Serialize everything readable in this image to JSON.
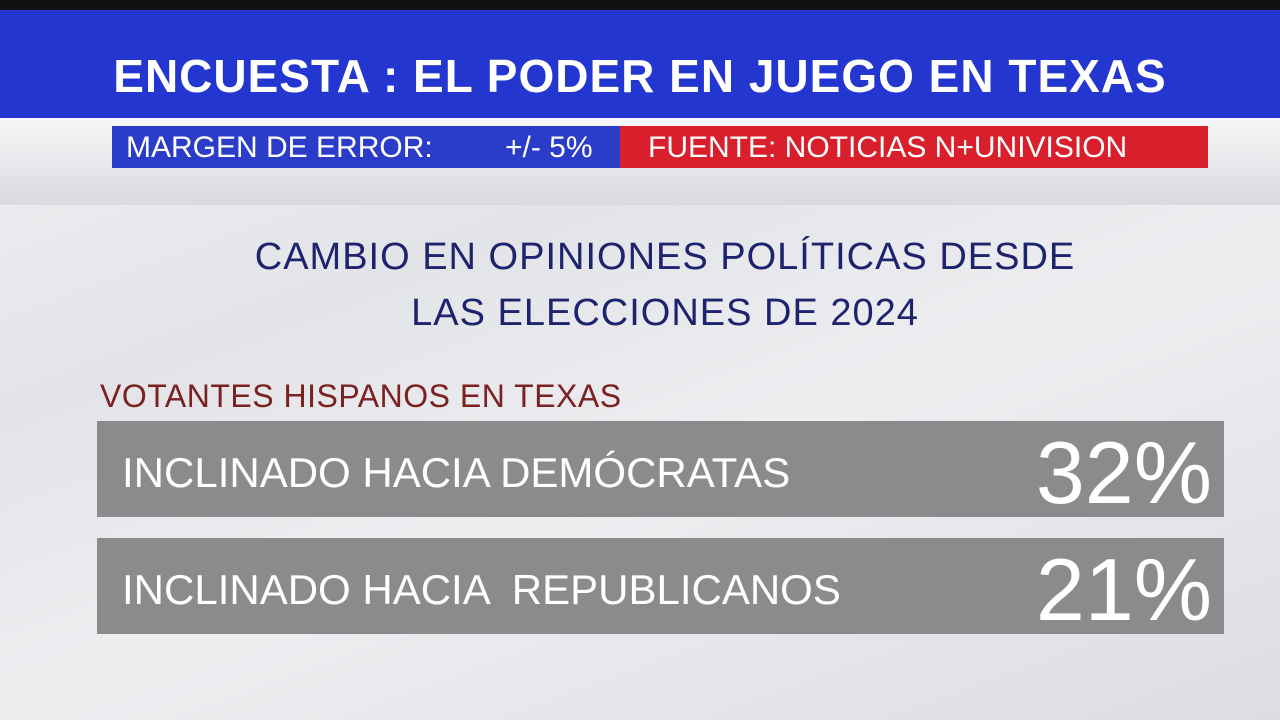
{
  "header": {
    "title": "ENCUESTA : EL PODER EN JUEGO EN TEXAS",
    "margin_label": "MARGEN DE ERROR:",
    "margin_value": "+/- 5%",
    "source": "FUENTE: NOTICIAS N+UNIVISION"
  },
  "subtitle": [
    "CAMBIO EN OPINIONES POLÍTICAS DESDE",
    "LAS ELECCIONES DE 2024"
  ],
  "group_label": "VOTANTES HISPANOS EN TEXAS",
  "rows": [
    {
      "label": "INCLINADO HACIA DEMÓCRATAS",
      "value": "32%"
    },
    {
      "label": "INCLINADO HACIA  REPUBLICANOS",
      "value": "21%"
    }
  ]
}
